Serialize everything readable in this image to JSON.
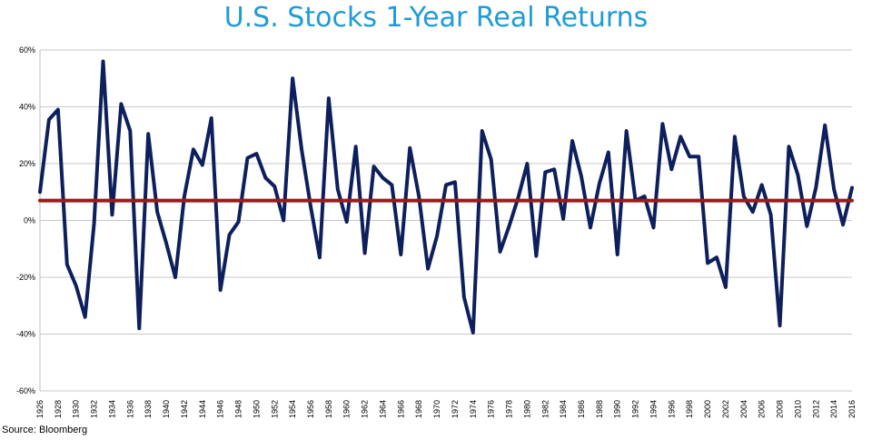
{
  "chart_data": {
    "type": "line",
    "title": "U.S. Stocks 1-Year Real Returns",
    "xlabel": "",
    "ylabel": "",
    "ylim": [
      -60,
      60
    ],
    "y_ticks": [
      "60%",
      "40%",
      "20%",
      "0%",
      "-20%",
      "-40%",
      "-60%"
    ],
    "x_tick_labels": [
      "1926",
      "1928",
      "1930",
      "1932",
      "1934",
      "1936",
      "1938",
      "1940",
      "1942",
      "1944",
      "1946",
      "1948",
      "1950",
      "1952",
      "1954",
      "1956",
      "1958",
      "1960",
      "1962",
      "1964",
      "1966",
      "1968",
      "1970",
      "1972",
      "1974",
      "1976",
      "1978",
      "1980",
      "1982",
      "1984",
      "1986",
      "1988",
      "1990",
      "1992",
      "1994",
      "1996",
      "1998",
      "2000",
      "2002",
      "2004",
      "2006",
      "2008",
      "2010",
      "2012",
      "2014",
      "2016"
    ],
    "grid": "horizontal",
    "series": [
      {
        "color": "#0d1f5c",
        "x": [
          1926,
          1927,
          1928,
          1929,
          1930,
          1931,
          1932,
          1933,
          1934,
          1935,
          1936,
          1937,
          1938,
          1939,
          1940,
          1941,
          1942,
          1943,
          1944,
          1945,
          1946,
          1947,
          1948,
          1949,
          1950,
          1951,
          1952,
          1953,
          1954,
          1955,
          1956,
          1957,
          1958,
          1959,
          1960,
          1961,
          1962,
          1963,
          1964,
          1965,
          1966,
          1967,
          1968,
          1969,
          1970,
          1971,
          1972,
          1973,
          1974,
          1975,
          1976,
          1977,
          1978,
          1979,
          1980,
          1981,
          1982,
          1983,
          1984,
          1985,
          1986,
          1987,
          1988,
          1989,
          1990,
          1991,
          1992,
          1993,
          1994,
          1995,
          1996,
          1997,
          1998,
          1999,
          2000,
          2001,
          2002,
          2003,
          2004,
          2005,
          2006,
          2007,
          2008,
          2009,
          2010,
          2011,
          2012,
          2013,
          2014,
          2015,
          2016
        ],
        "values": [
          10,
          35.5,
          39,
          -15.5,
          -23,
          -34,
          -1,
          56,
          2,
          41,
          31.5,
          -38,
          30.5,
          3,
          -8,
          -20,
          8.5,
          25,
          19.5,
          36,
          -24.5,
          -5,
          -0.5,
          22,
          23.5,
          15,
          12,
          0,
          50,
          25,
          5,
          -13,
          43,
          11,
          -0.5,
          26,
          -11.5,
          19,
          15,
          12.5,
          -12,
          25.5,
          8.5,
          -17,
          -5.5,
          12.5,
          13.5,
          -27,
          -39.5,
          31.5,
          21.5,
          -11,
          -2,
          8,
          20,
          -12.5,
          17,
          18,
          0.5,
          28,
          15.5,
          -2.5,
          13,
          24,
          -12,
          31.5,
          7,
          8.5,
          -2.5,
          34,
          18,
          29.5,
          22.5,
          22.5,
          -15,
          -13,
          -23.5,
          29.5,
          8.5,
          3,
          12.5,
          2,
          -37,
          26,
          16,
          -2,
          11.5,
          33.5,
          11,
          -1.5,
          11.5
        ]
      },
      {
        "color": "#9b1b1b",
        "x": [
          1926,
          2016
        ],
        "values": [
          7,
          7
        ]
      }
    ]
  },
  "source": "Source: Bloomberg"
}
